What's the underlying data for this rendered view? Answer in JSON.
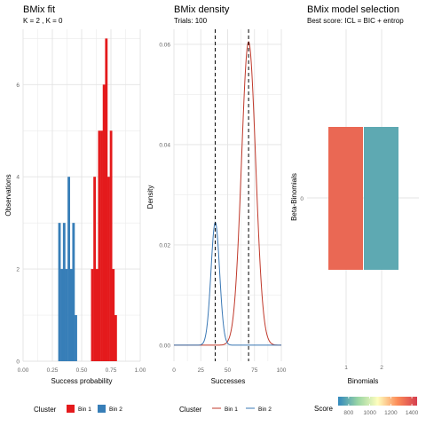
{
  "panels": {
    "fit": {
      "title": "BMix fit",
      "subtitle": "K     = 2 , K          = 0",
      "xlabel": "Success probability",
      "ylabel": "Observations"
    },
    "density": {
      "title": "BMix density",
      "subtitle": "Trials: 100",
      "xlabel": "Successes",
      "ylabel": "Density"
    },
    "selection": {
      "title": "BMix model selection",
      "subtitle": "Best score: ICL = BIC + entrop",
      "xlabel": "Binomials",
      "ylabel": "Beta-Binomials"
    }
  },
  "legends": {
    "cluster": {
      "title": "Cluster",
      "items": [
        "Bin 1",
        "Bin 2"
      ]
    },
    "score": {
      "title": "Score",
      "ticks": [
        "800",
        "1000",
        "1200",
        "1400"
      ]
    }
  },
  "colors": {
    "bin1": "#e41a1c",
    "bin2": "#377eb8",
    "density_bin1": "#c0392b",
    "density_bin2": "#3a78b5"
  },
  "chart_data": [
    {
      "type": "bar",
      "title": "BMix fit",
      "xlabel": "Success probability",
      "ylabel": "Observations",
      "xlim": [
        0,
        1
      ],
      "ylim": [
        0,
        7.2
      ],
      "xticks": [
        "0.00",
        "0.25",
        "0.50",
        "0.75",
        "1.00"
      ],
      "yticks": [
        "0",
        "2",
        "4",
        "6"
      ],
      "series": [
        {
          "name": "Bin 2",
          "x": [
            0.31,
            0.33,
            0.35,
            0.37,
            0.39,
            0.41,
            0.43,
            0.45
          ],
          "values": [
            3,
            2,
            3,
            2,
            4,
            2,
            3,
            1
          ]
        },
        {
          "name": "Bin 1",
          "x": [
            0.59,
            0.61,
            0.63,
            0.65,
            0.67,
            0.69,
            0.71,
            0.73,
            0.75,
            0.77,
            0.79
          ],
          "values": [
            2,
            4,
            2,
            5,
            5,
            6,
            7,
            4,
            5,
            2,
            1
          ]
        }
      ]
    },
    {
      "type": "line",
      "title": "BMix density",
      "xlabel": "Successes",
      "ylabel": "Density",
      "xlim": [
        0,
        100
      ],
      "ylim": [
        0,
        0.063
      ],
      "xticks": [
        "0",
        "25",
        "50",
        "75",
        "100"
      ],
      "yticks": [
        "0.00",
        "0.02",
        "0.04",
        "0.06"
      ],
      "series": [
        {
          "name": "Bin 1",
          "mean": 69.5,
          "sd": 6.6,
          "weight": 1.0
        },
        {
          "name": "Bin 2",
          "mean": 38.5,
          "sd": 4.0,
          "weight": 0.245
        }
      ],
      "vlines": [
        38.5,
        69.5
      ]
    },
    {
      "type": "heatmap",
      "title": "BMix model selection",
      "xlabel": "Binomials",
      "ylabel": "Beta-Binomials",
      "x": [
        "1",
        "2"
      ],
      "y": [
        "0"
      ],
      "values": [
        [
          1350,
          780
        ]
      ],
      "colorbar": {
        "min": 700,
        "max": 1450,
        "ticks": [
          800,
          1000,
          1200,
          1400
        ]
      }
    }
  ]
}
